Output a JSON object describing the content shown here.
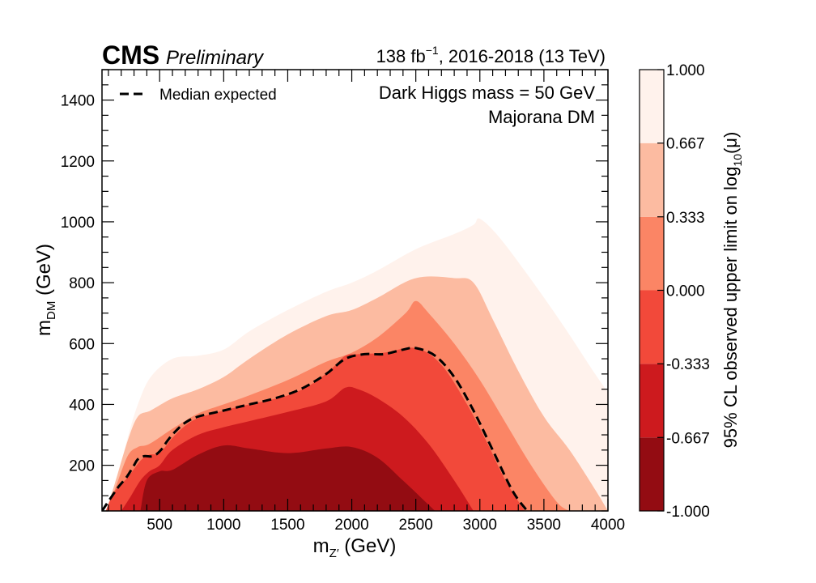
{
  "header": {
    "experiment": "CMS",
    "status": "Preliminary",
    "lumi_main": "138 fb",
    "lumi_exp": "−1",
    "lumi_rest": ", 2016-2018 (13 TeV)"
  },
  "chart_data": {
    "type": "heatmap",
    "subtype": "filled-contour",
    "title": "",
    "xlabel": "m",
    "xlabel_sub": "Z′",
    "xlabel_unit": " (GeV)",
    "ylabel": "m",
    "ylabel_sub": "DM",
    "ylabel_unit": " (GeV)",
    "xlim": [
      50,
      4000
    ],
    "ylim": [
      50,
      1500
    ],
    "xticks": [
      500,
      1000,
      1500,
      2000,
      2500,
      3000,
      3500,
      4000
    ],
    "yticks": [
      200,
      400,
      600,
      800,
      1000,
      1200,
      1400
    ],
    "annotations": [
      "Dark Higgs mass = 50 GeV",
      "Majorana DM"
    ],
    "legend": {
      "position": "top-left",
      "entries": [
        {
          "label": "Median expected",
          "style": "dashed-black"
        }
      ]
    },
    "colorbar": {
      "label": "95% CL observed upper limit on log",
      "label_sub": "10",
      "label_end": "(μ)",
      "ticks": [
        "1.000",
        "0.667",
        "0.333",
        "0.000",
        "-0.333",
        "-0.667",
        "-1.000"
      ],
      "levels": [
        -1.0,
        -0.667,
        -0.333,
        0.0,
        0.333,
        0.667,
        1.0
      ],
      "colors": [
        "#930c12",
        "#cd1a1e",
        "#f2493a",
        "#fb8565",
        "#fcbba1",
        "#fff2ec"
      ]
    },
    "contours": [
      {
        "lower": 0.667,
        "upper": 1.0,
        "color": "#fff2ec",
        "x": [
          80,
          180,
          250,
          330,
          430,
          600,
          800,
          1000,
          1200,
          1500,
          1800,
          2000,
          2200,
          2500,
          2800,
          2950,
          3000,
          3150,
          3400,
          3650,
          3900,
          4000
        ],
        "y": [
          50,
          170,
          290,
          400,
          490,
          550,
          560,
          580,
          640,
          710,
          770,
          800,
          840,
          910,
          960,
          990,
          1010,
          950,
          810,
          660,
          500,
          440
        ]
      },
      {
        "lower": 0.333,
        "upper": 0.667,
        "color": "#fcbba1",
        "x": [
          80,
          150,
          250,
          330,
          430,
          600,
          800,
          1000,
          1200,
          1500,
          1800,
          2000,
          2200,
          2500,
          2800,
          2950,
          3100,
          3300,
          3500,
          3700,
          3900,
          4000
        ],
        "y": [
          50,
          140,
          280,
          360,
          380,
          420,
          450,
          490,
          550,
          630,
          690,
          710,
          750,
          815,
          815,
          800,
          680,
          510,
          360,
          250,
          120,
          50
        ]
      },
      {
        "lower": 0.0,
        "upper": 0.333,
        "color": "#fb8565",
        "x": [
          80,
          150,
          250,
          330,
          420,
          600,
          800,
          1000,
          1200,
          1500,
          1800,
          2000,
          2200,
          2420,
          2500,
          2600,
          2800,
          3000,
          3200,
          3400,
          3600,
          3700
        ],
        "y": [
          50,
          120,
          230,
          260,
          270,
          320,
          370,
          400,
          430,
          480,
          540,
          570,
          620,
          700,
          740,
          700,
          600,
          480,
          340,
          200,
          80,
          50
        ]
      },
      {
        "lower": -0.333,
        "upper": 0.0,
        "color": "#f2493a",
        "x": [
          80,
          150,
          250,
          350,
          420,
          500,
          600,
          700,
          800,
          1000,
          1200,
          1500,
          1700,
          1850,
          1950,
          2050,
          2250,
          2500,
          2700,
          2900,
          3050,
          3200,
          3350
        ],
        "y": [
          50,
          115,
          160,
          215,
          235,
          240,
          290,
          330,
          355,
          380,
          400,
          430,
          470,
          520,
          560,
          565,
          570,
          585,
          530,
          400,
          280,
          150,
          50
        ]
      },
      {
        "lower": -0.667,
        "upper": -0.333,
        "color": "#cd1a1e",
        "x": [
          200,
          270,
          350,
          420,
          500,
          600,
          800,
          1000,
          1200,
          1500,
          1800,
          1950,
          2050,
          2200,
          2400,
          2600,
          2800,
          2950
        ],
        "y": [
          50,
          95,
          150,
          180,
          200,
          250,
          300,
          325,
          345,
          375,
          410,
          455,
          450,
          420,
          360,
          270,
          150,
          50
        ]
      },
      {
        "lower": -1.0,
        "upper": -0.667,
        "color": "#930c12",
        "x": [
          350,
          400,
          500,
          600,
          800,
          1000,
          1200,
          1500,
          1800,
          2000,
          2200,
          2400,
          2550,
          2650
        ],
        "y": [
          50,
          150,
          180,
          185,
          235,
          265,
          255,
          240,
          255,
          260,
          225,
          150,
          90,
          50
        ]
      }
    ],
    "median_expected": {
      "x": [
        50,
        130,
        180,
        240,
        300,
        330,
        380,
        450,
        510,
        560,
        620,
        700,
        800,
        1000,
        1200,
        1400,
        1600,
        1800,
        1950,
        2100,
        2250,
        2400,
        2500,
        2650,
        2800,
        2950,
        3100,
        3250,
        3350,
        3380
      ],
      "y": [
        50,
        100,
        130,
        160,
        200,
        220,
        230,
        230,
        250,
        280,
        310,
        340,
        360,
        380,
        400,
        420,
        450,
        500,
        550,
        565,
        565,
        580,
        585,
        560,
        490,
        380,
        250,
        120,
        60,
        50
      ]
    }
  }
}
